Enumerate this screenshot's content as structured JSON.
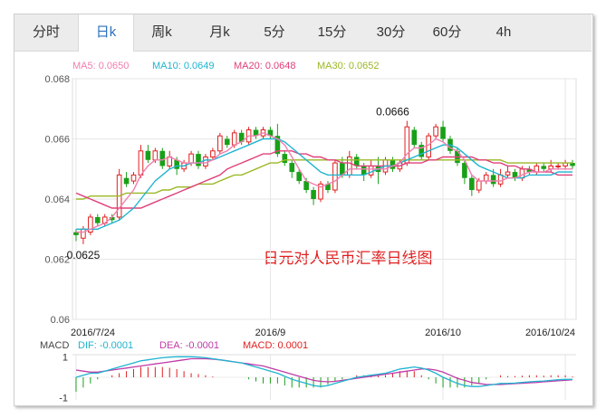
{
  "tabs": [
    {
      "label": "分时",
      "active": false
    },
    {
      "label": "日k",
      "active": true
    },
    {
      "label": "周k",
      "active": false
    },
    {
      "label": "月k",
      "active": false
    },
    {
      "label": "5分",
      "active": false
    },
    {
      "label": "15分",
      "active": false
    },
    {
      "label": "30分",
      "active": false
    },
    {
      "label": "60分",
      "active": false
    },
    {
      "label": "4h",
      "active": false
    }
  ],
  "ma_legend": [
    {
      "label": "MA5: 0.0650",
      "color": "#f07fb0"
    },
    {
      "label": "MA10: 0.0649",
      "color": "#20b4d0"
    },
    {
      "label": "MA20: 0.0648",
      "color": "#e0407a"
    },
    {
      "label": "MA30: 0.0652",
      "color": "#9ab826"
    }
  ],
  "macd_legend": [
    {
      "label": "MACD",
      "color": "#444444"
    },
    {
      "label": "DIF: -0.0001",
      "color": "#20b4d0"
    },
    {
      "label": "DEA: -0.0001",
      "color": "#c03aa8"
    },
    {
      "label": "MACD: 0.0001",
      "color": "#e02020"
    }
  ],
  "colors": {
    "up": "#e02020",
    "down": "#18a018",
    "grid": "#e6e6e6"
  },
  "chart_data": {
    "type": "candlestick",
    "title": "日元对人民币汇率日线图",
    "yticks": [
      "0.068",
      "0.066",
      "0.064",
      "0.062",
      "0.06"
    ],
    "ylim": [
      0.06,
      0.068
    ],
    "xticks": [
      {
        "label": "2016/7/24",
        "index": 0
      },
      {
        "label": "2016/9",
        "index": 27
      },
      {
        "label": "2016/10",
        "index": 51
      },
      {
        "label": "2016/10/24",
        "index": 68
      }
    ],
    "annotations": [
      {
        "label": "0.0666",
        "index": 44,
        "value": 0.0666
      },
      {
        "label": "0.0625",
        "index": 1,
        "value": 0.0625
      }
    ],
    "candles": [
      [
        0.0629,
        0.0628,
        0.063,
        0.0626
      ],
      [
        0.0627,
        0.063,
        0.0631,
        0.0625
      ],
      [
        0.0629,
        0.0634,
        0.0635,
        0.0628
      ],
      [
        0.0634,
        0.0632,
        0.0635,
        0.0631
      ],
      [
        0.0632,
        0.0634,
        0.0635,
        0.0631
      ],
      [
        0.0634,
        0.0633,
        0.0635,
        0.0632
      ],
      [
        0.0634,
        0.0648,
        0.065,
        0.0633
      ],
      [
        0.0647,
        0.0645,
        0.0649,
        0.0644
      ],
      [
        0.0646,
        0.0648,
        0.0649,
        0.0645
      ],
      [
        0.0648,
        0.0656,
        0.0658,
        0.0647
      ],
      [
        0.0656,
        0.0653,
        0.0658,
        0.0652
      ],
      [
        0.0653,
        0.0656,
        0.0657,
        0.0652
      ],
      [
        0.0656,
        0.0651,
        0.0657,
        0.065
      ],
      [
        0.0651,
        0.0654,
        0.0656,
        0.065
      ],
      [
        0.0653,
        0.065,
        0.0654,
        0.0648
      ],
      [
        0.065,
        0.0652,
        0.0653,
        0.0649
      ],
      [
        0.0652,
        0.0655,
        0.0656,
        0.0651
      ],
      [
        0.0655,
        0.0651,
        0.0656,
        0.065
      ],
      [
        0.0651,
        0.0654,
        0.0655,
        0.065
      ],
      [
        0.0654,
        0.0656,
        0.0657,
        0.0653
      ],
      [
        0.0656,
        0.0661,
        0.0662,
        0.0655
      ],
      [
        0.066,
        0.0658,
        0.0661,
        0.0657
      ],
      [
        0.0658,
        0.0662,
        0.0663,
        0.0657
      ],
      [
        0.0662,
        0.0659,
        0.0663,
        0.0658
      ],
      [
        0.0659,
        0.0663,
        0.0664,
        0.0658
      ],
      [
        0.0663,
        0.0661,
        0.0664,
        0.066
      ],
      [
        0.0661,
        0.0663,
        0.0664,
        0.066
      ],
      [
        0.0663,
        0.0661,
        0.0664,
        0.066
      ],
      [
        0.0661,
        0.0655,
        0.0665,
        0.0654
      ],
      [
        0.0655,
        0.0652,
        0.0656,
        0.0651
      ],
      [
        0.0652,
        0.0649,
        0.0653,
        0.0647
      ],
      [
        0.0649,
        0.0646,
        0.065,
        0.0645
      ],
      [
        0.0646,
        0.0643,
        0.0647,
        0.0642
      ],
      [
        0.0643,
        0.064,
        0.0644,
        0.0638
      ],
      [
        0.064,
        0.0645,
        0.0646,
        0.0639
      ],
      [
        0.0645,
        0.0643,
        0.0646,
        0.0642
      ],
      [
        0.0643,
        0.0652,
        0.0653,
        0.0642
      ],
      [
        0.0652,
        0.0648,
        0.0654,
        0.0647
      ],
      [
        0.0648,
        0.0654,
        0.0656,
        0.0647
      ],
      [
        0.0654,
        0.0651,
        0.0655,
        0.065
      ],
      [
        0.0651,
        0.0648,
        0.0652,
        0.0646
      ],
      [
        0.0648,
        0.0651,
        0.0653,
        0.0647
      ],
      [
        0.0651,
        0.0649,
        0.0654,
        0.0645
      ],
      [
        0.0649,
        0.0653,
        0.0654,
        0.0648
      ],
      [
        0.0653,
        0.065,
        0.0654,
        0.0649
      ],
      [
        0.065,
        0.0652,
        0.0653,
        0.0649
      ],
      [
        0.0652,
        0.0664,
        0.0666,
        0.0651
      ],
      [
        0.0663,
        0.0658,
        0.0664,
        0.0657
      ],
      [
        0.0658,
        0.0654,
        0.0659,
        0.0653
      ],
      [
        0.0654,
        0.0661,
        0.0662,
        0.0653
      ],
      [
        0.0661,
        0.0664,
        0.0665,
        0.066
      ],
      [
        0.0664,
        0.066,
        0.0666,
        0.0659
      ],
      [
        0.066,
        0.0656,
        0.0661,
        0.0655
      ],
      [
        0.0656,
        0.0652,
        0.0657,
        0.0651
      ],
      [
        0.0652,
        0.0647,
        0.0653,
        0.0645
      ],
      [
        0.0647,
        0.0643,
        0.0648,
        0.0641
      ],
      [
        0.0643,
        0.0646,
        0.0647,
        0.0642
      ],
      [
        0.0646,
        0.0648,
        0.0649,
        0.0645
      ],
      [
        0.0648,
        0.0645,
        0.065,
        0.0644
      ],
      [
        0.0645,
        0.0648,
        0.065,
        0.0644
      ],
      [
        0.0648,
        0.0649,
        0.0651,
        0.0647
      ],
      [
        0.0649,
        0.0647,
        0.065,
        0.0646
      ],
      [
        0.0647,
        0.065,
        0.0651,
        0.0646
      ],
      [
        0.065,
        0.0649,
        0.0651,
        0.0648
      ],
      [
        0.0649,
        0.0651,
        0.0652,
        0.0648
      ],
      [
        0.0651,
        0.065,
        0.0652,
        0.0649
      ],
      [
        0.065,
        0.0651,
        0.0653,
        0.0649
      ],
      [
        0.0651,
        0.0651,
        0.0652,
        0.065
      ],
      [
        0.0651,
        0.0652,
        0.0653,
        0.065
      ],
      [
        0.0652,
        0.0651,
        0.0653,
        0.065
      ]
    ],
    "ma5": [
      0.0629,
      0.0629,
      0.063,
      0.0631,
      0.0632,
      0.0634,
      0.0637,
      0.064,
      0.0643,
      0.0648,
      0.0651,
      0.0653,
      0.0653,
      0.0654,
      0.0653,
      0.0652,
      0.0652,
      0.0652,
      0.0652,
      0.0653,
      0.0655,
      0.0656,
      0.0658,
      0.0659,
      0.0661,
      0.0661,
      0.0662,
      0.0661,
      0.066,
      0.0658,
      0.0654,
      0.065,
      0.0646,
      0.0645,
      0.0644,
      0.0645,
      0.0646,
      0.0648,
      0.065,
      0.065,
      0.065,
      0.065,
      0.065,
      0.065,
      0.0651,
      0.0652,
      0.0655,
      0.0657,
      0.0657,
      0.0658,
      0.066,
      0.0659,
      0.0657,
      0.0656,
      0.0653,
      0.0648,
      0.0646,
      0.0646,
      0.0646,
      0.0646,
      0.0647,
      0.0647,
      0.0648,
      0.0649,
      0.0649,
      0.0649,
      0.065,
      0.065,
      0.065,
      0.065
    ],
    "ma10": [
      0.063,
      0.063,
      0.063,
      0.063,
      0.0631,
      0.0632,
      0.0633,
      0.0635,
      0.0637,
      0.064,
      0.0643,
      0.0646,
      0.0648,
      0.065,
      0.0651,
      0.0651,
      0.0652,
      0.0652,
      0.0653,
      0.0653,
      0.0654,
      0.0655,
      0.0656,
      0.0657,
      0.0658,
      0.0659,
      0.066,
      0.066,
      0.066,
      0.0659,
      0.0657,
      0.0655,
      0.0653,
      0.0651,
      0.0649,
      0.0648,
      0.0648,
      0.0648,
      0.0648,
      0.0648,
      0.0648,
      0.0649,
      0.065,
      0.0651,
      0.0651,
      0.0652,
      0.0653,
      0.0654,
      0.0655,
      0.0656,
      0.0657,
      0.0658,
      0.0658,
      0.0657,
      0.0655,
      0.0653,
      0.0651,
      0.065,
      0.0649,
      0.0648,
      0.0647,
      0.0647,
      0.0647,
      0.0648,
      0.0648,
      0.0648,
      0.0648,
      0.0649,
      0.0649,
      0.0649
    ],
    "ma20": [
      0.0642,
      0.0641,
      0.064,
      0.0639,
      0.0638,
      0.0637,
      0.0637,
      0.0637,
      0.0637,
      0.0637,
      0.0638,
      0.0639,
      0.064,
      0.0641,
      0.0642,
      0.0643,
      0.0644,
      0.0645,
      0.0646,
      0.0647,
      0.0648,
      0.065,
      0.0651,
      0.0652,
      0.0653,
      0.0654,
      0.0655,
      0.0655,
      0.0656,
      0.0656,
      0.0656,
      0.0655,
      0.0655,
      0.0654,
      0.0654,
      0.0653,
      0.0653,
      0.0652,
      0.0652,
      0.0651,
      0.0651,
      0.0651,
      0.0651,
      0.0651,
      0.0651,
      0.0651,
      0.0652,
      0.0652,
      0.0652,
      0.0653,
      0.0653,
      0.0654,
      0.0654,
      0.0654,
      0.0654,
      0.0654,
      0.0653,
      0.0653,
      0.0652,
      0.0652,
      0.0651,
      0.0651,
      0.065,
      0.065,
      0.0649,
      0.0649,
      0.0649,
      0.0648,
      0.0648,
      0.0648
    ],
    "ma30": [
      0.064,
      0.064,
      0.0641,
      0.0641,
      0.0641,
      0.0641,
      0.0641,
      0.0642,
      0.0642,
      0.0642,
      0.0642,
      0.0642,
      0.0643,
      0.0643,
      0.0644,
      0.0644,
      0.0644,
      0.0645,
      0.0645,
      0.0645,
      0.0646,
      0.0647,
      0.0648,
      0.0648,
      0.0649,
      0.065,
      0.0651,
      0.0652,
      0.0652,
      0.0653,
      0.0653,
      0.0653,
      0.0653,
      0.0653,
      0.0653,
      0.0653,
      0.0653,
      0.0653,
      0.0653,
      0.0653,
      0.0653,
      0.0653,
      0.0653,
      0.0653,
      0.0653,
      0.0653,
      0.0653,
      0.0653,
      0.0653,
      0.0653,
      0.0653,
      0.0653,
      0.0653,
      0.0653,
      0.0653,
      0.0653,
      0.0653,
      0.0653,
      0.0653,
      0.0653,
      0.0652,
      0.0652,
      0.0652,
      0.0652,
      0.0652,
      0.0652,
      0.0652,
      0.0652,
      0.0652,
      0.0652
    ],
    "macd_panel": {
      "yticks": [
        "1",
        "-1"
      ],
      "ylim": [
        -1.1,
        1.1
      ],
      "dif": [
        0.0,
        0.1,
        0.2,
        0.2,
        0.3,
        0.4,
        0.5,
        0.6,
        0.7,
        0.8,
        0.85,
        0.9,
        0.95,
        0.98,
        1.0,
        1.0,
        1.0,
        0.98,
        0.95,
        0.9,
        0.85,
        0.8,
        0.75,
        0.7,
        0.6,
        0.5,
        0.4,
        0.3,
        0.2,
        0.05,
        -0.1,
        -0.2,
        -0.3,
        -0.4,
        -0.45,
        -0.4,
        -0.3,
        -0.2,
        -0.1,
        0.0,
        0.05,
        0.1,
        0.15,
        0.2,
        0.3,
        0.4,
        0.45,
        0.5,
        0.45,
        0.35,
        0.2,
        0.0,
        -0.15,
        -0.3,
        -0.4,
        -0.45,
        -0.45,
        -0.4,
        -0.35,
        -0.3,
        -0.3,
        -0.28,
        -0.25,
        -0.22,
        -0.2,
        -0.18,
        -0.15,
        -0.12,
        -0.1,
        -0.1
      ],
      "dea": [
        0.35,
        0.3,
        0.25,
        0.25,
        0.3,
        0.35,
        0.4,
        0.45,
        0.5,
        0.55,
        0.6,
        0.65,
        0.7,
        0.75,
        0.8,
        0.85,
        0.9,
        0.9,
        0.9,
        0.88,
        0.85,
        0.8,
        0.75,
        0.7,
        0.65,
        0.6,
        0.55,
        0.45,
        0.35,
        0.25,
        0.15,
        0.05,
        -0.05,
        -0.15,
        -0.2,
        -0.22,
        -0.2,
        -0.15,
        -0.1,
        -0.05,
        0.0,
        0.05,
        0.1,
        0.15,
        0.2,
        0.25,
        0.3,
        0.35,
        0.4,
        0.4,
        0.35,
        0.25,
        0.1,
        -0.05,
        -0.15,
        -0.25,
        -0.3,
        -0.35,
        -0.35,
        -0.35,
        -0.33,
        -0.31,
        -0.29,
        -0.27,
        -0.25,
        -0.22,
        -0.2,
        -0.17,
        -0.15,
        -0.12
      ],
      "hist": [
        -0.7,
        -0.5,
        -0.3,
        -0.1,
        0.0,
        0.1,
        0.2,
        0.3,
        0.4,
        0.5,
        0.5,
        0.5,
        0.5,
        0.46,
        0.4,
        0.3,
        0.2,
        0.16,
        0.1,
        0.04,
        0.0,
        0.0,
        0.0,
        0.0,
        -0.1,
        -0.2,
        -0.3,
        -0.3,
        -0.3,
        -0.4,
        -0.5,
        -0.5,
        -0.5,
        -0.5,
        -0.5,
        -0.36,
        -0.2,
        -0.1,
        0.0,
        0.1,
        0.1,
        0.1,
        0.1,
        0.1,
        0.2,
        0.3,
        0.3,
        0.3,
        0.1,
        -0.1,
        -0.3,
        -0.5,
        -0.5,
        -0.5,
        -0.5,
        -0.4,
        -0.3,
        -0.1,
        0.0,
        0.1,
        0.06,
        0.06,
        0.08,
        0.1,
        0.1,
        0.08,
        0.1,
        0.1,
        0.1,
        0.04
      ]
    }
  }
}
